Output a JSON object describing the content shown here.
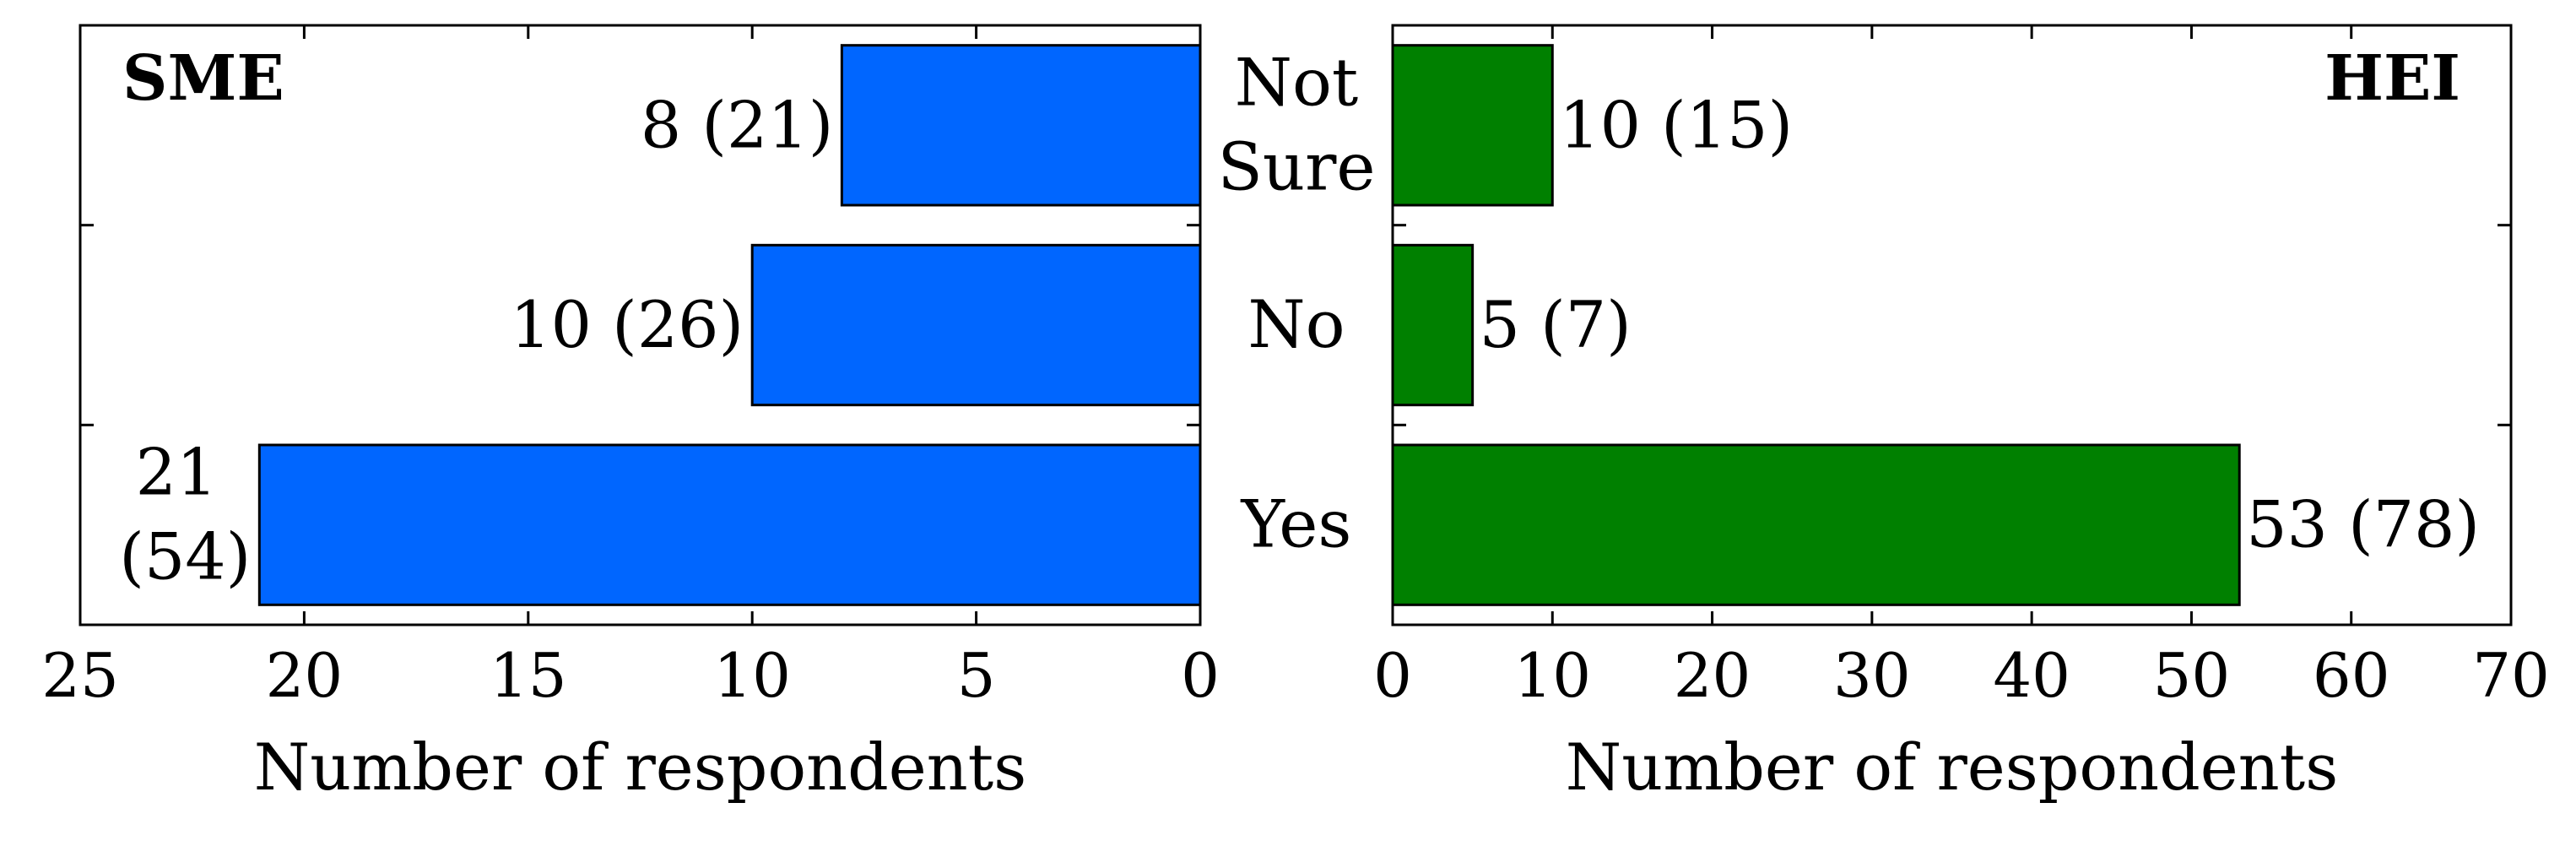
{
  "chart_data": [
    {
      "type": "bar",
      "orientation": "horizontal",
      "axis_direction": "reversed",
      "panel_label": "SME",
      "categories": [
        "Not Sure",
        "No",
        "Yes"
      ],
      "values": [
        8,
        10,
        21
      ],
      "value_labels": [
        "8 (21)",
        "10 (26)",
        "21 (54)"
      ],
      "xlabel": "Number of respondents",
      "xlim": [
        0,
        25
      ],
      "xticks": [
        0,
        5,
        10,
        15,
        20,
        25
      ],
      "color": "#0066FF"
    },
    {
      "type": "bar",
      "orientation": "horizontal",
      "panel_label": "HEI",
      "categories": [
        "Not Sure",
        "No",
        "Yes"
      ],
      "values": [
        10,
        5,
        53
      ],
      "value_labels": [
        "10 (15)",
        "5 (7)",
        "53 (78)"
      ],
      "xlabel": "Number of respondents",
      "xlim": [
        0,
        70
      ],
      "xticks": [
        0,
        10,
        20,
        30,
        40,
        50,
        60,
        70
      ],
      "color": "#008000"
    }
  ],
  "category_labels": [
    "Not\nSure",
    "No",
    "Yes"
  ]
}
